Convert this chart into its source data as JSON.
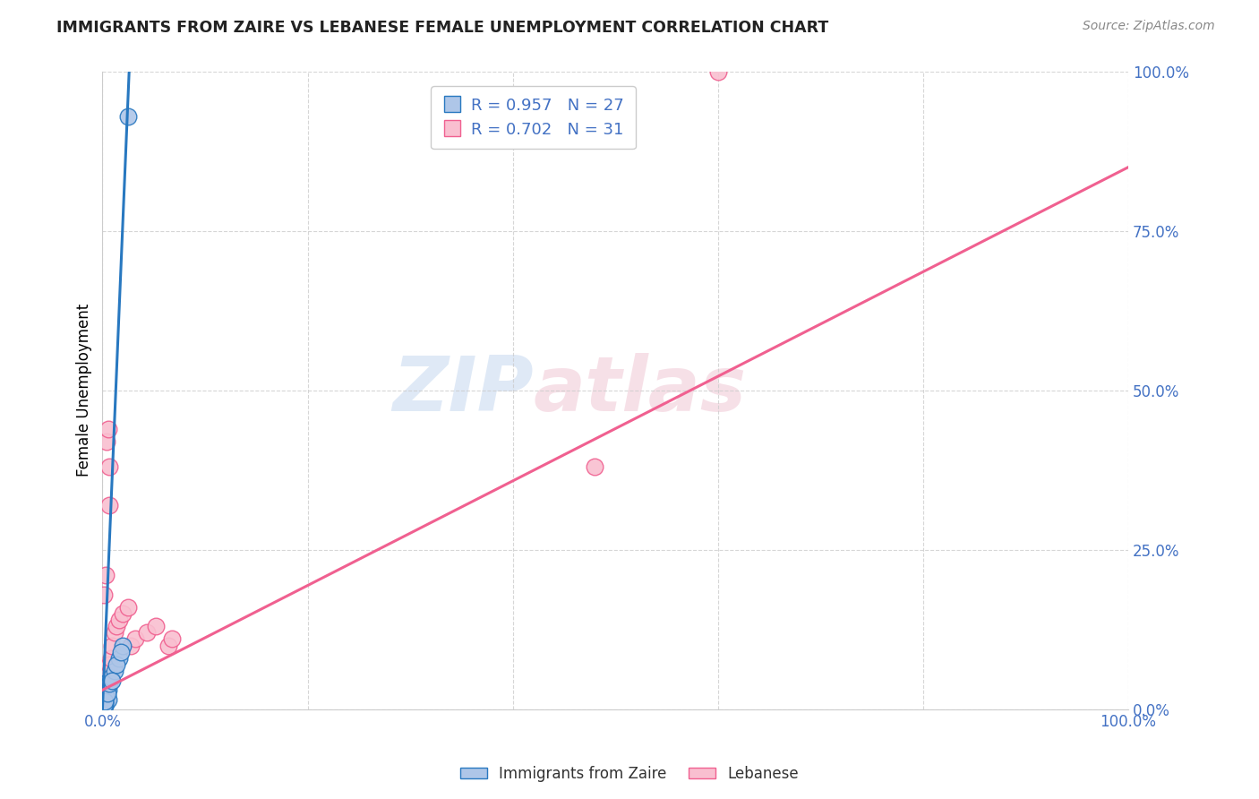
{
  "title": "IMMIGRANTS FROM ZAIRE VS LEBANESE FEMALE UNEMPLOYMENT CORRELATION CHART",
  "source": "Source: ZipAtlas.com",
  "ylabel": "Female Unemployment",
  "legend_line1": "R = 0.957   N = 27",
  "legend_line2": "R = 0.702   N = 31",
  "legend_label_blue": "Immigrants from Zaire",
  "legend_label_pink": "Lebanese",
  "watermark_zip": "ZIP",
  "watermark_atlas": "atlas",
  "blue_color": "#aec6e8",
  "pink_color": "#f9bfd0",
  "blue_line_color": "#2878c0",
  "pink_line_color": "#f06090",
  "axis_color": "#4472c4",
  "title_color": "#222222",
  "blue_scatter": [
    [
      0.1,
      1.0
    ],
    [
      0.15,
      0.5
    ],
    [
      0.2,
      0.7
    ],
    [
      0.1,
      2.0
    ],
    [
      0.4,
      1.5
    ],
    [
      0.25,
      3.0
    ],
    [
      0.35,
      1.0
    ],
    [
      0.2,
      4.0
    ],
    [
      0.5,
      2.0
    ],
    [
      0.4,
      2.5
    ],
    [
      0.25,
      0.5
    ],
    [
      0.6,
      3.0
    ],
    [
      0.55,
      1.5
    ],
    [
      0.35,
      2.0
    ],
    [
      0.2,
      1.0
    ],
    [
      0.1,
      0.5
    ],
    [
      0.25,
      1.2
    ],
    [
      0.5,
      2.5
    ],
    [
      0.7,
      4.0
    ],
    [
      0.8,
      5.0
    ],
    [
      1.2,
      6.0
    ],
    [
      1.6,
      8.0
    ],
    [
      2.0,
      10.0
    ],
    [
      1.4,
      7.0
    ],
    [
      0.9,
      4.5
    ],
    [
      1.8,
      9.0
    ],
    [
      2.5,
      93.0
    ]
  ],
  "pink_scatter": [
    [
      0.1,
      1.0
    ],
    [
      0.2,
      1.5
    ],
    [
      0.25,
      2.0
    ],
    [
      0.1,
      0.5
    ],
    [
      0.35,
      4.0
    ],
    [
      0.4,
      5.0
    ],
    [
      0.5,
      3.5
    ],
    [
      0.25,
      2.5
    ],
    [
      0.6,
      6.0
    ],
    [
      0.65,
      7.0
    ],
    [
      0.15,
      18.0
    ],
    [
      0.4,
      42.0
    ],
    [
      0.55,
      44.0
    ],
    [
      0.65,
      38.0
    ],
    [
      0.7,
      32.0
    ],
    [
      0.3,
      21.0
    ],
    [
      0.8,
      8.0
    ],
    [
      0.9,
      10.0
    ],
    [
      1.2,
      12.0
    ],
    [
      1.4,
      13.0
    ],
    [
      1.6,
      14.0
    ],
    [
      2.0,
      15.0
    ],
    [
      2.5,
      16.0
    ],
    [
      2.8,
      10.0
    ],
    [
      3.2,
      11.0
    ],
    [
      4.3,
      12.0
    ],
    [
      5.2,
      13.0
    ],
    [
      6.4,
      10.0
    ],
    [
      6.8,
      11.0
    ],
    [
      60.0,
      100.0
    ],
    [
      48.0,
      38.0
    ]
  ],
  "blue_trendline_x": [
    0.0,
    2.6
  ],
  "blue_trendline_y": [
    0.0,
    100.0
  ],
  "pink_trendline_x": [
    0.0,
    100.0
  ],
  "pink_trendline_y": [
    3.0,
    85.0
  ],
  "xlim": [
    0,
    100
  ],
  "ylim": [
    0,
    100
  ],
  "xtick_positions": [
    0,
    20,
    40,
    60,
    80,
    100
  ],
  "ytick_positions": [
    0,
    25,
    50,
    75,
    100
  ],
  "ytick_labels": [
    "0.0%",
    "25.0%",
    "50.0%",
    "75.0%",
    "100.0%"
  ]
}
